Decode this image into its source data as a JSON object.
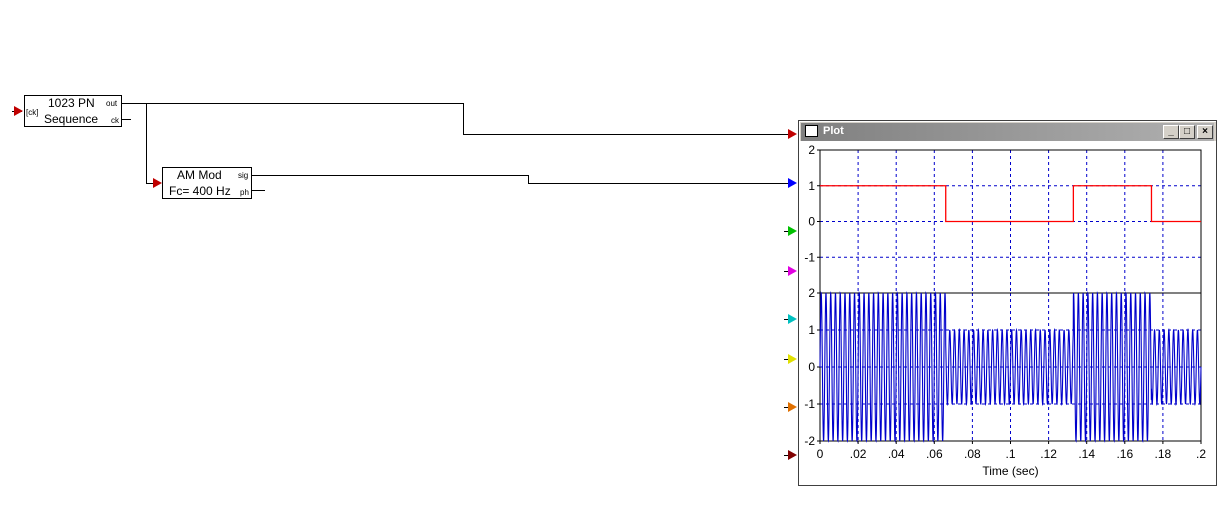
{
  "pn_block": {
    "line1": "1023 PN",
    "line2": "Sequence",
    "in_port": "[ck]",
    "out_port": "out",
    "ck_port": "ck"
  },
  "am_block": {
    "line1": "AM Mod",
    "line2": "Fc= 400 Hz",
    "sig_port": "sig",
    "ph_port": "ph"
  },
  "plot_window": {
    "title": "Plot",
    "minimize": "_",
    "maximize": "□",
    "close": "×"
  },
  "colors": {
    "input_arrows": [
      "#c00000",
      "#0000ff",
      "#00c000",
      "#e000e0",
      "#00c0c0",
      "#e0e000",
      "#e07000",
      "#800000"
    ]
  },
  "chart_data": [
    {
      "type": "line",
      "title": "",
      "xlabel": "",
      "ylabel": "",
      "xlim": [
        0,
        0.2
      ],
      "ylim": [
        -2,
        2
      ],
      "yticks": [
        "2",
        "1",
        "0",
        "-1"
      ],
      "grid": true,
      "series": [
        {
          "color": "#ff0000",
          "x": [
            0,
            0.066,
            0.066,
            0.133,
            0.133,
            0.174,
            0.174,
            0.2
          ],
          "y": [
            1,
            1,
            0,
            0,
            1,
            1,
            0,
            0
          ]
        }
      ]
    },
    {
      "type": "line",
      "title": "",
      "xlabel": "Time (sec)",
      "ylabel": "",
      "xlim": [
        0,
        0.2
      ],
      "ylim": [
        -2,
        2
      ],
      "yticks": [
        "2",
        "1",
        "0",
        "-1",
        "-2"
      ],
      "xticks": [
        "0",
        ".02",
        ".04",
        ".06",
        ".08",
        ".1",
        ".12",
        ".14",
        ".16",
        ".18",
        ".2"
      ],
      "grid": true,
      "carrier_hz": 400,
      "series": [
        {
          "color": "#0000cc",
          "amplitude_segments": [
            [
              0,
              0.066,
              2
            ],
            [
              0.066,
              0.133,
              1
            ],
            [
              0.133,
              0.174,
              2
            ],
            [
              0.174,
              0.2,
              1
            ]
          ]
        }
      ]
    }
  ]
}
